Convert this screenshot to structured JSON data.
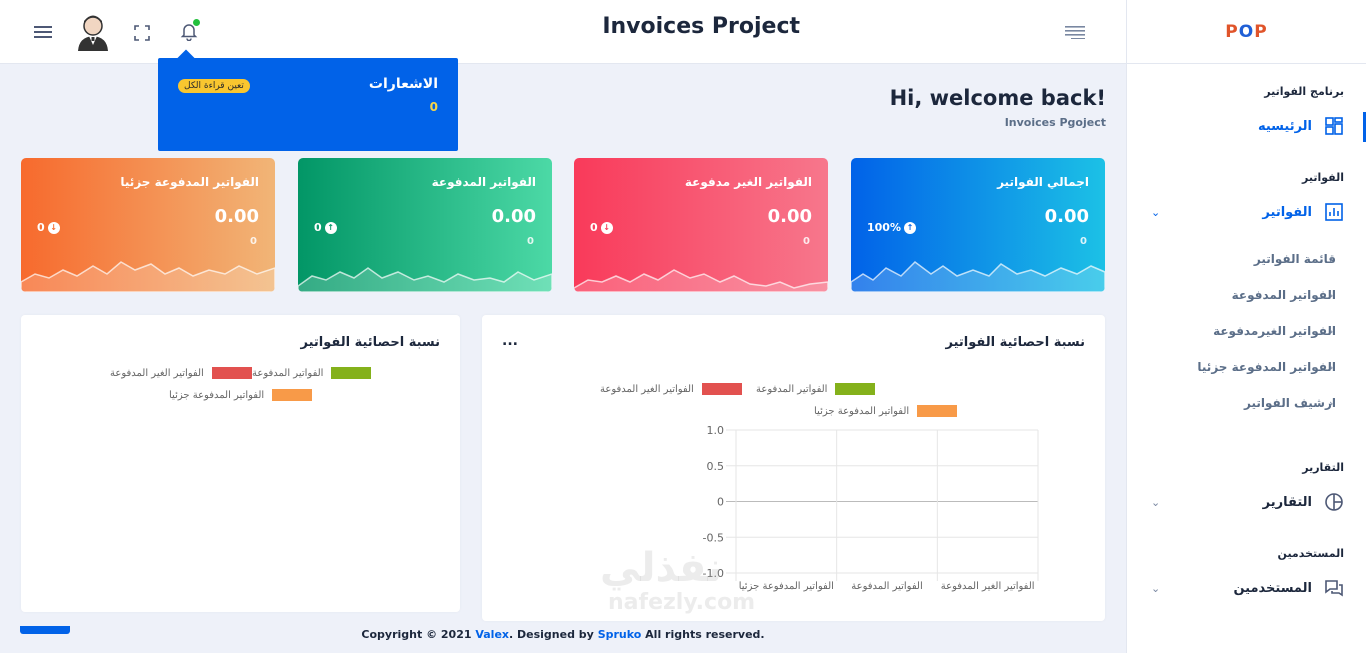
{
  "brand": {
    "logo_left": "P",
    "logo_mid": "O",
    "logo_right": "P"
  },
  "header": {
    "project_title": "Invoices Project",
    "menu_icon": "hamburger-icon",
    "lines_icon": "align-right-icon",
    "fullscreen_icon": "fullscreen-icon",
    "bell_icon": "bell-icon",
    "avatar_icon": "user-avatar"
  },
  "notifications": {
    "title": "الاشعارات",
    "count": "0",
    "mark_all_read": "تعين قراءة الكل"
  },
  "welcome": {
    "title": "Hi, welcome back!",
    "subtitle": "Invoices Pgoject"
  },
  "sidebar": {
    "cat_program": "برنامج الفواتير",
    "home_label": "الرئيسيه",
    "cat_invoices": "الفواتير",
    "invoices_label": "الفواتير",
    "sub_items": [
      {
        "label": "قائمة الفواتير"
      },
      {
        "label": "الفواتير المدفوعة"
      },
      {
        "label": "الفواتير الغيرمدفوعة"
      },
      {
        "label": "الفواتير المدفوعة جزئيا"
      },
      {
        "label": "ارشيف الفواتير"
      }
    ],
    "cat_reports": "التقارير",
    "reports_label": "التقارير",
    "cat_users": "المستخدمين",
    "users_label": "المستخدمين"
  },
  "cards": [
    {
      "title": "اجمالي الفواتير",
      "value": "0.00",
      "sub": "0",
      "percent": "100%",
      "direction": "up",
      "color_from": "#0162e8",
      "color_to": "#1cc1e6"
    },
    {
      "title": "الفواتير الغير مدفوعة",
      "value": "0.00",
      "sub": "0",
      "percent": "0",
      "direction": "down",
      "color_from": "#f93a5a",
      "color_to": "#f7778c"
    },
    {
      "title": "الفواتير المدفوعة",
      "value": "0.00",
      "sub": "0",
      "percent": "0",
      "direction": "up",
      "color_from": "#029666",
      "color_to": "#4cd9a6"
    },
    {
      "title": "الفواتير المدفوعة جزئيا",
      "value": "0.00",
      "sub": "0",
      "percent": "0",
      "direction": "down",
      "color_from": "#f76a2d",
      "color_to": "#f1b577"
    }
  ],
  "panel_bar": {
    "title": "نسبة احصائية الفواتير",
    "menu": "...",
    "legend": [
      {
        "label": "الفواتير الغير المدفوعة",
        "color": "#e2514f"
      },
      {
        "label": "الفواتير المدفوعة",
        "color": "#84b11b"
      },
      {
        "label": "الفواتير المدفوعة جزئيا",
        "color": "#f89a48"
      }
    ]
  },
  "panel_pie": {
    "title": "نسبة احصائية الفواتير",
    "legend": [
      {
        "label": "الفواتير الغير المدفوعة",
        "color": "#e2514f"
      },
      {
        "label": "الفواتير المدفوعة",
        "color": "#84b11b"
      },
      {
        "label": "الفواتير المدفوعة جزئيا",
        "color": "#f89a48"
      }
    ]
  },
  "chart_data": {
    "type": "bar",
    "categories": [
      "الفواتير الغير المدفوعة",
      "الفواتير المدفوعة",
      "الفواتير المدفوعة جزئيا"
    ],
    "series": [
      {
        "name": "الفواتير الغير المدفوعة",
        "values": [
          0,
          0,
          0
        ]
      },
      {
        "name": "الفواتير المدفوعة",
        "values": [
          0,
          0,
          0
        ]
      },
      {
        "name": "الفواتير المدفوعة جزئيا",
        "values": [
          0,
          0,
          0
        ]
      }
    ],
    "yticks": [
      "1.0",
      "0.5",
      "0",
      "-0.5",
      "-1.0"
    ],
    "ylim": [
      -1,
      1
    ],
    "grid": true,
    "legend_position": "top"
  },
  "footer": {
    "prefix": "Copyright © 2021 ",
    "brand1": "Valex",
    "mid": ". Designed by ",
    "brand2": "Spruko",
    "suffix": " All rights reserved."
  },
  "watermark": {
    "ar": "نفذلي",
    "en": "nafezly.com"
  }
}
